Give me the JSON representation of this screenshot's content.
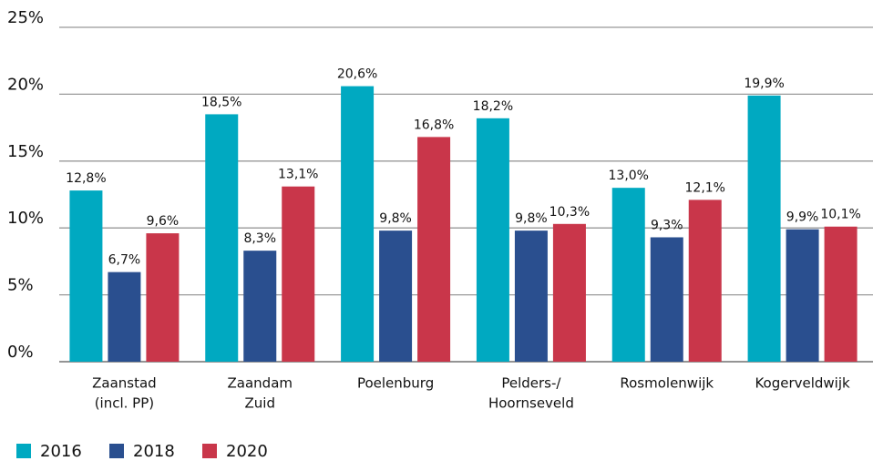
{
  "chart_data": {
    "type": "bar",
    "categories": [
      [
        "Zaanstad",
        "(incl. PP)"
      ],
      [
        "Zaandam",
        "Zuid"
      ],
      [
        "Poelenburg"
      ],
      [
        "Pelders-/",
        "Hoornseveld"
      ],
      [
        "Rosmolenwijk"
      ],
      [
        "Kogerveldwijk"
      ]
    ],
    "series": [
      {
        "name": "2016",
        "color": "#00a9c1",
        "values": [
          12.8,
          18.5,
          20.6,
          18.2,
          13.0,
          19.9
        ],
        "value_labels": [
          "12,8%",
          "18,5%",
          "20,6%",
          "18,2%",
          "13,0%",
          "19,9%"
        ]
      },
      {
        "name": "2018",
        "color": "#2a4f8f",
        "values": [
          6.7,
          8.3,
          9.8,
          9.8,
          9.3,
          9.9
        ],
        "value_labels": [
          "6,7%",
          "8,3%",
          "9,8%",
          "9,8%",
          "9,3%",
          "9,9%"
        ]
      },
      {
        "name": "2020",
        "color": "#c9364a",
        "values": [
          9.6,
          13.1,
          16.8,
          10.3,
          12.1,
          10.1
        ],
        "value_labels": [
          "9,6%",
          "13,1%",
          "16,8%",
          "10,3%",
          "12,1%",
          "10,1%"
        ]
      }
    ],
    "ylim": [
      0,
      25
    ],
    "yticks": [
      {
        "value": 0,
        "label": "0%"
      },
      {
        "value": 5,
        "label": "5%"
      },
      {
        "value": 10,
        "label": "10%"
      },
      {
        "value": 15,
        "label": "15%"
      },
      {
        "value": 20,
        "label": "20%"
      },
      {
        "value": 25,
        "label": "25%"
      }
    ],
    "grid": true,
    "legend": "bottom-left"
  }
}
